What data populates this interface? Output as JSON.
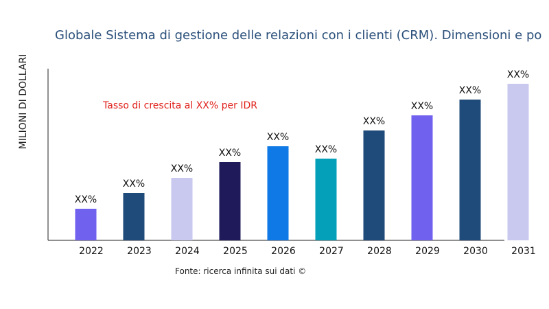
{
  "chart_data": {
    "type": "bar",
    "title": "Globale Sistema di gestione delle relazioni con i clienti (CRM). Dimensioni e po",
    "xlabel": "",
    "ylabel": "MILIONI DI DOLLARI",
    "categories": [
      "2022",
      "2023",
      "2024",
      "2025",
      "2026",
      "2027",
      "2028",
      "2029",
      "2030",
      "2031"
    ],
    "values": [
      46,
      69,
      91,
      114,
      137,
      119,
      160,
      182,
      205,
      228
    ],
    "data_labels": [
      "XX%",
      "XX%",
      "XX%",
      "XX%",
      "XX%",
      "XX%",
      "XX%",
      "XX%",
      "XX%",
      "XX%"
    ],
    "colors": [
      "#7161ef",
      "#1f4b7a",
      "#c9c9f0",
      "#1f1a5a",
      "#0f7ae5",
      "#04a0b9",
      "#1f4b7a",
      "#7161ef",
      "#1f4b7a",
      "#c9c9f0"
    ],
    "ylim": [
      0,
      250
    ],
    "grid": false,
    "annotation": "Tasso di crescita al XX% per IDR",
    "source": "Fonte: ricerca infinita sui dati ©"
  }
}
